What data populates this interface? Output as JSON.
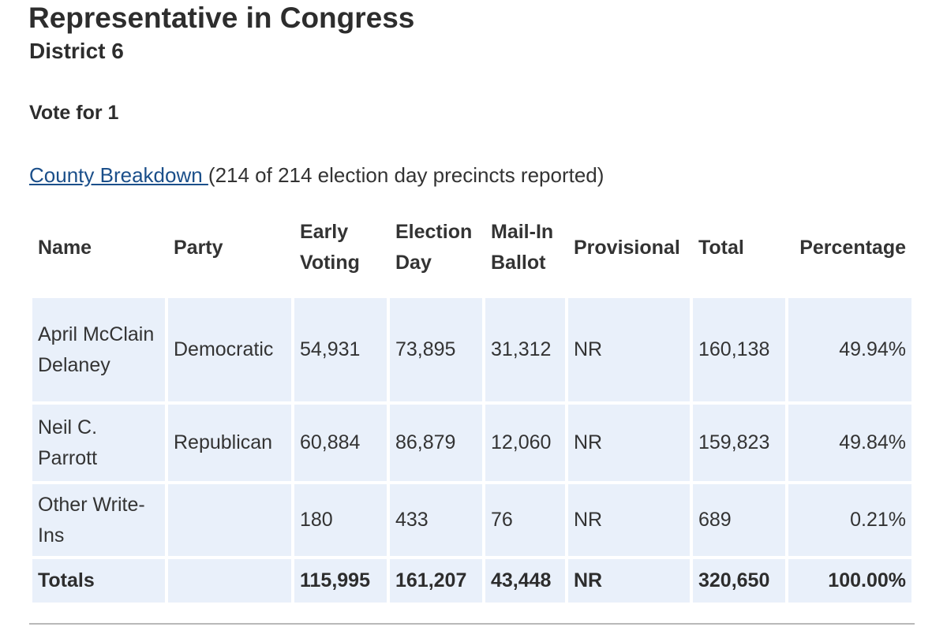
{
  "header": {
    "title": "Representative in Congress",
    "subtitle": "District 6",
    "vote_for": "Vote for 1"
  },
  "breakdown": {
    "link_text": "County Breakdown ",
    "status_text": "(214 of 214 election day precincts reported)"
  },
  "table": {
    "columns": {
      "name": "Name",
      "party": "Party",
      "early_voting": "Early Voting",
      "election_day": "Election Day",
      "mail_in": "Mail-In Ballot",
      "provisional": "Provisional",
      "total": "Total",
      "percentage": "Percentage"
    },
    "rows": [
      {
        "name": "April McClain Delaney",
        "party": "Democratic",
        "early_voting": "54,931",
        "election_day": "73,895",
        "mail_in": "31,312",
        "provisional": "NR",
        "total": "160,138",
        "percentage": "49.94%"
      },
      {
        "name": "Neil C. Parrott",
        "party": "Republican",
        "early_voting": "60,884",
        "election_day": "86,879",
        "mail_in": "12,060",
        "provisional": "NR",
        "total": "159,823",
        "percentage": "49.84%"
      },
      {
        "name": "Other Write-Ins",
        "party": "",
        "early_voting": "180",
        "election_day": "433",
        "mail_in": "76",
        "provisional": "NR",
        "total": "689",
        "percentage": "0.21%"
      }
    ],
    "totals": {
      "name": "Totals",
      "party": "",
      "early_voting": "115,995",
      "election_day": "161,207",
      "mail_in": "43,448",
      "provisional": "NR",
      "total": "320,650",
      "percentage": "100.00%"
    }
  },
  "colors": {
    "row_background": "#e9f0fa",
    "link": "#1b4f8a",
    "text": "#333333"
  }
}
